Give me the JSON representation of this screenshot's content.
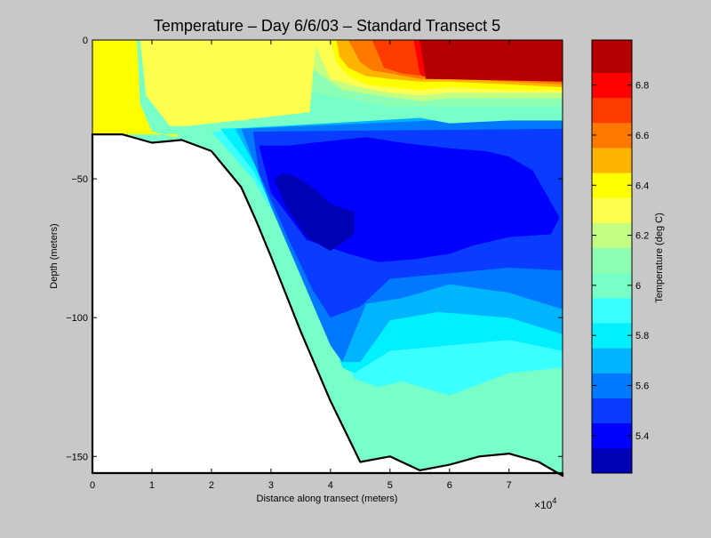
{
  "chart_data": {
    "type": "heatmap",
    "title": "Temperature – Day 6/6/03 – Standard Transect 5",
    "xlabel": "Distance along transect (meters)",
    "ylabel": "Depth (meters)",
    "x_multiplier_label": "×10",
    "x_multiplier_exponent": "4",
    "xlim": [
      0,
      79000
    ],
    "ylim": [
      -156,
      0
    ],
    "x_ticks": [
      {
        "value": 0,
        "label": "0"
      },
      {
        "value": 10000,
        "label": "1"
      },
      {
        "value": 20000,
        "label": "2"
      },
      {
        "value": 30000,
        "label": "3"
      },
      {
        "value": 40000,
        "label": "4"
      },
      {
        "value": 50000,
        "label": "5"
      },
      {
        "value": 60000,
        "label": "6"
      },
      {
        "value": 70000,
        "label": "7"
      }
    ],
    "y_ticks": [
      {
        "value": 0,
        "label": "0"
      },
      {
        "value": -50,
        "label": "−50"
      },
      {
        "value": -100,
        "label": "−100"
      },
      {
        "value": -150,
        "label": "−150"
      }
    ],
    "colorbar": {
      "label": "Temperature (deg C)",
      "range": [
        5.25,
        6.98
      ],
      "ticks": [
        {
          "value": 5.4,
          "label": "5.4"
        },
        {
          "value": 5.6,
          "label": "5.6"
        },
        {
          "value": 5.8,
          "label": "5.8"
        },
        {
          "value": 6.0,
          "label": "6"
        },
        {
          "value": 6.2,
          "label": "6.2"
        },
        {
          "value": 6.4,
          "label": "6.4"
        },
        {
          "value": 6.6,
          "label": "6.6"
        },
        {
          "value": 6.8,
          "label": "6.8"
        }
      ],
      "bands": [
        {
          "min": 5.25,
          "max": 5.35,
          "color": "#0000b4"
        },
        {
          "min": 5.35,
          "max": 5.45,
          "color": "#0000ff"
        },
        {
          "min": 5.45,
          "max": 5.55,
          "color": "#0a3cff"
        },
        {
          "min": 5.55,
          "max": 5.65,
          "color": "#0078ff"
        },
        {
          "min": 5.65,
          "max": 5.75,
          "color": "#00b4ff"
        },
        {
          "min": 5.75,
          "max": 5.85,
          "color": "#00f0ff"
        },
        {
          "min": 5.85,
          "max": 5.95,
          "color": "#3cffff"
        },
        {
          "min": 5.95,
          "max": 6.05,
          "color": "#78ffc8"
        },
        {
          "min": 6.05,
          "max": 6.15,
          "color": "#8cffb4"
        },
        {
          "min": 6.15,
          "max": 6.25,
          "color": "#c3ff82"
        },
        {
          "min": 6.25,
          "max": 6.35,
          "color": "#ffff50"
        },
        {
          "min": 6.35,
          "max": 6.45,
          "color": "#ffff00"
        },
        {
          "min": 6.45,
          "max": 6.55,
          "color": "#ffb400"
        },
        {
          "min": 6.55,
          "max": 6.65,
          "color": "#ff7800"
        },
        {
          "min": 6.65,
          "max": 6.75,
          "color": "#ff3c00"
        },
        {
          "min": 6.75,
          "max": 6.85,
          "color": "#ff0000"
        },
        {
          "min": 6.85,
          "max": 6.98,
          "color": "#b40000"
        }
      ]
    },
    "bottom_profile": {
      "x": [
        0,
        5000,
        10000,
        15000,
        20000,
        25000,
        27500,
        30000,
        35000,
        40000,
        45000,
        50000,
        55000,
        60000,
        65000,
        70000,
        75000,
        79000
      ],
      "depth": [
        -34,
        -34,
        -37,
        -36,
        -40,
        -53,
        -65,
        -78,
        -105,
        -130,
        -152,
        -150,
        -155,
        -153,
        -150,
        -149,
        -152,
        -157
      ]
    },
    "temperature_regions": [
      {
        "temp": 5.95,
        "x": [
          19000,
          79000,
          79000,
          48000,
          42000,
          40000,
          38000,
          35000,
          30000,
          24000,
          19000
        ],
        "depth": [
          -34,
          -30,
          -157,
          -153,
          -137,
          -125,
          -110,
          -90,
          -65,
          -45,
          -34
        ]
      },
      {
        "temp": 5.9,
        "x": [
          20000,
          79000,
          79000,
          70000,
          60000,
          52000,
          48000,
          44000,
          42000,
          38000,
          33000,
          27000,
          20000
        ],
        "depth": [
          -33,
          -28,
          -118,
          -120,
          -128,
          -123,
          -125,
          -122,
          -113,
          -95,
          -72,
          -50,
          -33
        ]
      },
      {
        "temp": 5.8,
        "x": [
          21500,
          79000,
          79000,
          70000,
          60000,
          50000,
          44000,
          42000,
          38000,
          33000,
          27000,
          21500
        ],
        "depth": [
          -32,
          -26,
          -112,
          -108,
          -110,
          -112,
          -120,
          -118,
          -92,
          -70,
          -47,
          -32
        ]
      },
      {
        "temp": 5.7,
        "x": [
          24000,
          79000,
          79000,
          70000,
          58000,
          50000,
          45000,
          42000,
          38000,
          33000,
          28000,
          24000
        ],
        "depth": [
          -32,
          -25,
          -106,
          -100,
          -98,
          -101,
          -116,
          -116,
          -95,
          -72,
          -48,
          -32
        ]
      },
      {
        "temp": 5.6,
        "x": [
          25000,
          79000,
          79000,
          70000,
          60000,
          52000,
          46000,
          42000,
          40000,
          35000,
          30000,
          25000
        ],
        "depth": [
          -32,
          -27,
          -97,
          -91,
          -88,
          -93,
          -95,
          -116,
          -110,
          -85,
          -60,
          -32
        ]
      },
      {
        "temp": 5.5,
        "x": [
          27000,
          79000,
          79000,
          70000,
          60000,
          50000,
          45000,
          40000,
          37000,
          33000,
          28000,
          27000
        ],
        "depth": [
          -33,
          -32,
          -83,
          -82,
          -84,
          -86,
          -96,
          -100,
          -90,
          -72,
          -48,
          -33
        ]
      },
      {
        "temp": 5.4,
        "x": [
          28000,
          33000,
          37000,
          46000,
          52000,
          56000,
          60000,
          66000,
          70000,
          74000,
          78500,
          77000,
          70000,
          64000,
          60000,
          54000,
          48000,
          43000,
          36000,
          30000,
          28000
        ],
        "depth": [
          -38,
          -38,
          -37,
          -35,
          -37,
          -38,
          -39,
          -40,
          -42,
          -47,
          -64,
          -70,
          -71,
          -74,
          -77,
          -79,
          -80,
          -77,
          -72,
          -55,
          -38
        ]
      },
      {
        "temp": 5.3,
        "x": [
          30500,
          32000,
          34000,
          37000,
          40000,
          44000,
          44000,
          40000,
          36000,
          32500,
          30500
        ],
        "depth": [
          -50,
          -48,
          -49,
          -53,
          -59,
          -62,
          -70,
          -76,
          -71,
          -60,
          -50
        ]
      },
      {
        "temp": 6.0,
        "x": [
          0,
          20000,
          21500,
          23000,
          26000,
          31000,
          37000,
          42000,
          48000,
          55000,
          60000,
          70000,
          79000,
          79000,
          0
        ],
        "depth": [
          0,
          0,
          -22,
          -23,
          -22,
          -21,
          -20,
          -22,
          -25,
          -28,
          -30,
          -29,
          -29,
          0,
          0
        ]
      },
      {
        "temp": 6.1,
        "x": [
          0,
          20000,
          21000,
          30000,
          35000,
          40000,
          45000,
          50000,
          55000,
          60000,
          65000,
          79000,
          79000,
          0
        ],
        "depth": [
          0,
          0,
          -17,
          -17,
          -18,
          -20,
          -22,
          -24,
          -24,
          -24,
          -24,
          -24,
          0,
          0
        ]
      },
      {
        "temp": 6.2,
        "x": [
          0,
          16000,
          17000,
          26000,
          36000,
          38000,
          42000,
          48000,
          55000,
          60000,
          70000,
          79000,
          79000,
          0
        ],
        "depth": [
          0,
          0,
          -29,
          -29,
          -8,
          -12,
          -18,
          -20,
          -22,
          -21,
          -21,
          -21,
          0,
          0
        ]
      },
      {
        "temp": 6.3,
        "x": [
          0,
          8000,
          9000,
          13000,
          16000,
          36500,
          37500,
          40000,
          45000,
          50000,
          55000,
          60000,
          70000,
          79000,
          79000,
          0
        ],
        "depth": [
          0,
          0,
          -20,
          -31,
          -31,
          -26,
          -2,
          -14,
          -17,
          -19,
          -20,
          -19,
          -19,
          -19,
          0,
          0
        ]
      },
      {
        "temp": 6.4,
        "x": [
          0,
          7500,
          8000,
          10000,
          14000,
          14500,
          0
        ],
        "depth": [
          0,
          0,
          -23,
          -33,
          -35,
          -34,
          -34
        ]
      },
      {
        "temp": 6.4,
        "x": [
          40000,
          79000,
          79000,
          70000,
          60000,
          55000,
          50000,
          46000,
          43000,
          41000,
          40000
        ],
        "depth": [
          0,
          0,
          -18,
          -18,
          -17,
          -18,
          -17,
          -16,
          -13,
          -8,
          0
        ]
      },
      {
        "temp": 6.5,
        "x": [
          41000,
          79000,
          79000,
          70000,
          60000,
          55000,
          50000,
          46000,
          43000,
          41500,
          41000
        ],
        "depth": [
          0,
          0,
          -17,
          -16,
          -15,
          -15,
          -14,
          -13,
          -10,
          -6,
          0
        ]
      },
      {
        "temp": 6.6,
        "x": [
          43000,
          79000,
          79000,
          70000,
          60000,
          55000,
          50000,
          47000,
          45000,
          43000
        ],
        "depth": [
          0,
          0,
          -16,
          -15,
          -14,
          -14,
          -12,
          -11,
          -8,
          0
        ]
      },
      {
        "temp": 6.7,
        "x": [
          47000,
          79000,
          79000,
          60000,
          56000,
          52000,
          49000,
          47000
        ],
        "depth": [
          0,
          0,
          -15,
          -14,
          -13,
          -12,
          -10,
          0
        ]
      },
      {
        "temp": 6.8,
        "x": [
          54000,
          79000,
          79000,
          60000,
          55500,
          55000,
          54000
        ],
        "depth": [
          0,
          0,
          -15,
          -14,
          -13,
          -12,
          0
        ]
      },
      {
        "temp": 6.9,
        "x": [
          55000,
          79000,
          79000,
          56000,
          55000
        ],
        "depth": [
          0,
          0,
          -15,
          -14,
          0
        ]
      }
    ]
  }
}
